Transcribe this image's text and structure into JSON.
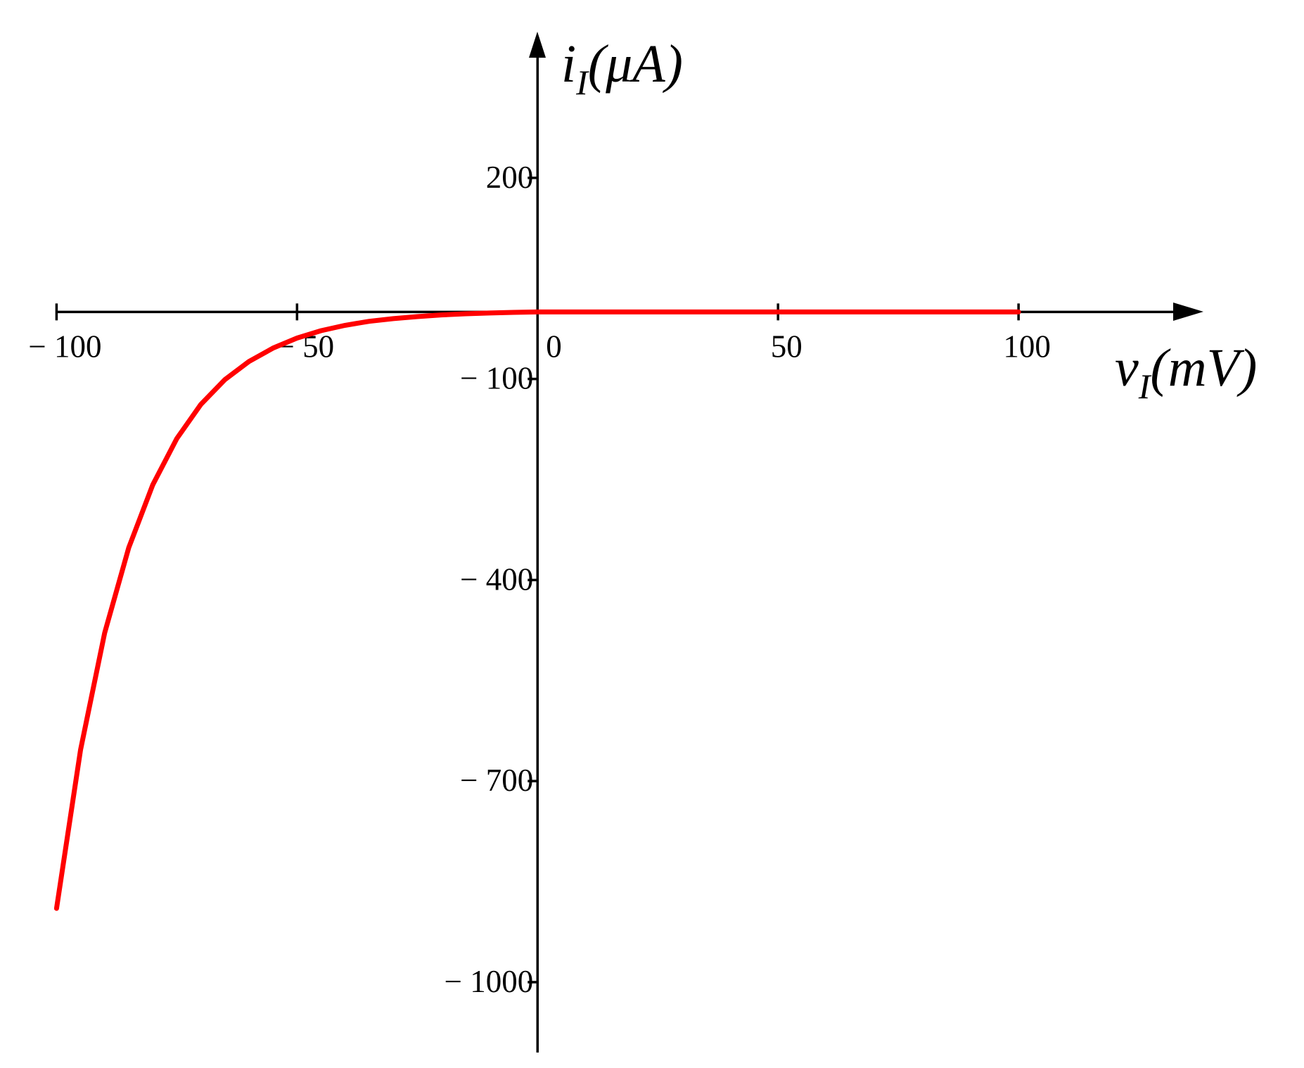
{
  "chart_data": {
    "type": "line",
    "x_label": {
      "main": "v",
      "sub": "I",
      "unit": "(mV)"
    },
    "y_label": {
      "main": "i",
      "sub": "I",
      "unit": "(μA)"
    },
    "x": [
      -100,
      -95,
      -90,
      -85,
      -80,
      -75,
      -70,
      -65,
      -60,
      -55,
      -50,
      -45,
      -40,
      -35,
      -30,
      -25,
      -20,
      -15,
      -10,
      -5,
      0,
      5,
      10,
      15,
      20,
      25,
      30,
      35,
      40,
      45,
      50,
      55,
      60,
      65,
      70,
      75,
      80,
      85,
      90,
      95,
      100
    ],
    "values": [
      -890,
      -653,
      -479,
      -352,
      -258,
      -189,
      -138,
      -101,
      -74,
      -54,
      -39,
      -28,
      -20,
      -14,
      -10,
      -7,
      -4.5,
      -2.8,
      -1.6,
      -0.7,
      0,
      0,
      0,
      0,
      0,
      0,
      0,
      0,
      0,
      0,
      0,
      0,
      0,
      0,
      0,
      0,
      0,
      0,
      0,
      0,
      0
    ],
    "color": "#ff0000",
    "xlim": [
      -100,
      138
    ],
    "ylim": [
      -1105,
      415
    ],
    "xticks": [
      {
        "value": -100,
        "label": "− 100"
      },
      {
        "value": -50,
        "label": "− 50"
      },
      0,
      50,
      100
    ],
    "yticks": [
      200,
      {
        "value": -100,
        "label": "− 100"
      },
      {
        "value": -400,
        "label": "− 400"
      },
      {
        "value": -700,
        "label": "− 700"
      },
      {
        "value": -1000,
        "label": "− 1000"
      }
    ]
  }
}
